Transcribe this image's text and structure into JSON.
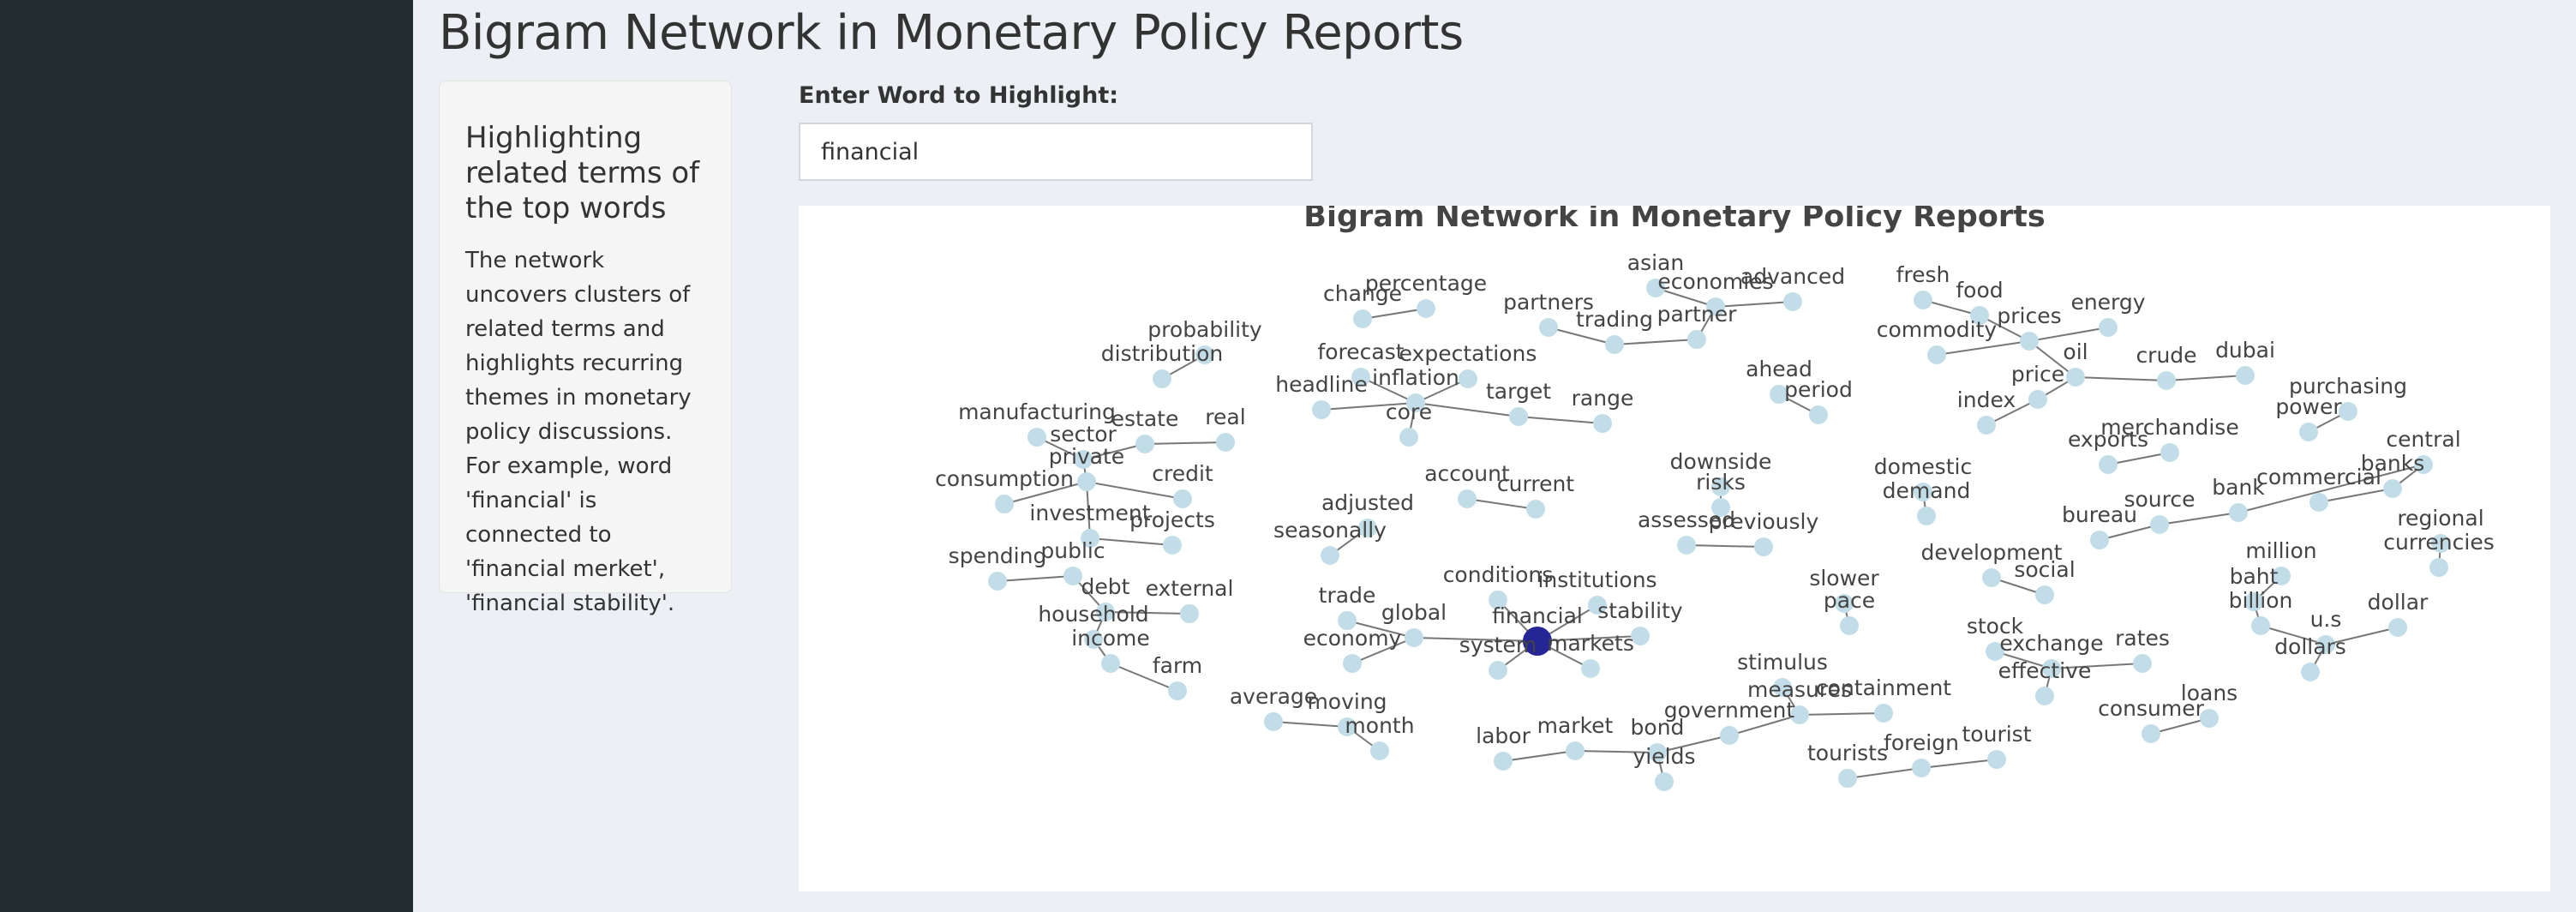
{
  "header": {
    "title": "Bigram Network in Monetary Policy Reports"
  },
  "info": {
    "title": "Highlighting related terms of the top words",
    "description": "The network uncovers clusters of related terms and highlights recurring themes in monetary policy discussions. For example, word 'financial' is connected to 'financial merket', 'financial stability'."
  },
  "search": {
    "label": "Enter Word to Highlight:",
    "value": "financial"
  },
  "colors": {
    "node": "#c2dde8",
    "highlight": "#232694",
    "edge": "#777777"
  },
  "chart_data": {
    "type": "network",
    "title": "Bigram Network in Monetary Policy Reports",
    "highlight": "financial",
    "nodes": [
      {
        "id": "probability"
      },
      {
        "id": "distribution"
      },
      {
        "id": "change"
      },
      {
        "id": "percentage"
      },
      {
        "id": "asian"
      },
      {
        "id": "economies"
      },
      {
        "id": "advanced"
      },
      {
        "id": "partners"
      },
      {
        "id": "trading"
      },
      {
        "id": "partner"
      },
      {
        "id": "fresh"
      },
      {
        "id": "food"
      },
      {
        "id": "prices"
      },
      {
        "id": "energy"
      },
      {
        "id": "commodity"
      },
      {
        "id": "oil"
      },
      {
        "id": "crude"
      },
      {
        "id": "dubai"
      },
      {
        "id": "price"
      },
      {
        "id": "index"
      },
      {
        "id": "forecast"
      },
      {
        "id": "expectations"
      },
      {
        "id": "inflation"
      },
      {
        "id": "headline"
      },
      {
        "id": "core"
      },
      {
        "id": "target"
      },
      {
        "id": "range"
      },
      {
        "id": "ahead"
      },
      {
        "id": "period"
      },
      {
        "id": "purchasing"
      },
      {
        "id": "power"
      },
      {
        "id": "manufacturing"
      },
      {
        "id": "sector"
      },
      {
        "id": "estate"
      },
      {
        "id": "real"
      },
      {
        "id": "private"
      },
      {
        "id": "consumption"
      },
      {
        "id": "credit"
      },
      {
        "id": "investment"
      },
      {
        "id": "projects"
      },
      {
        "id": "exports"
      },
      {
        "id": "merchandise"
      },
      {
        "id": "central"
      },
      {
        "id": "banks"
      },
      {
        "id": "bank"
      },
      {
        "id": "commercial"
      },
      {
        "id": "source"
      },
      {
        "id": "bureau"
      },
      {
        "id": "downside"
      },
      {
        "id": "risks"
      },
      {
        "id": "domestic"
      },
      {
        "id": "demand"
      },
      {
        "id": "account"
      },
      {
        "id": "current"
      },
      {
        "id": "adjusted"
      },
      {
        "id": "seasonally"
      },
      {
        "id": "assessed"
      },
      {
        "id": "previously"
      },
      {
        "id": "regional"
      },
      {
        "id": "currencies"
      },
      {
        "id": "spending"
      },
      {
        "id": "public"
      },
      {
        "id": "debt"
      },
      {
        "id": "external"
      },
      {
        "id": "household"
      },
      {
        "id": "income"
      },
      {
        "id": "farm"
      },
      {
        "id": "development"
      },
      {
        "id": "social"
      },
      {
        "id": "million"
      },
      {
        "id": "baht"
      },
      {
        "id": "billion"
      },
      {
        "id": "u.s"
      },
      {
        "id": "dollar"
      },
      {
        "id": "dollars"
      },
      {
        "id": "slower"
      },
      {
        "id": "pace"
      },
      {
        "id": "conditions"
      },
      {
        "id": "institutions"
      },
      {
        "id": "financial"
      },
      {
        "id": "stability"
      },
      {
        "id": "trade"
      },
      {
        "id": "global"
      },
      {
        "id": "economy"
      },
      {
        "id": "system"
      },
      {
        "id": "markets"
      },
      {
        "id": "stock"
      },
      {
        "id": "exchange"
      },
      {
        "id": "rates"
      },
      {
        "id": "effective"
      },
      {
        "id": "average"
      },
      {
        "id": "moving"
      },
      {
        "id": "month"
      },
      {
        "id": "stimulus"
      },
      {
        "id": "measures"
      },
      {
        "id": "containment"
      },
      {
        "id": "government"
      },
      {
        "id": "bond"
      },
      {
        "id": "yields"
      },
      {
        "id": "market"
      },
      {
        "id": "labor"
      },
      {
        "id": "consumer"
      },
      {
        "id": "loans"
      },
      {
        "id": "tourists"
      },
      {
        "id": "foreign"
      },
      {
        "id": "tourist"
      }
    ],
    "edges": [
      [
        "probability",
        "distribution"
      ],
      [
        "change",
        "percentage"
      ],
      [
        "asian",
        "economies"
      ],
      [
        "economies",
        "advanced"
      ],
      [
        "economies",
        "partner"
      ],
      [
        "trading",
        "partner"
      ],
      [
        "partners",
        "trading"
      ],
      [
        "fresh",
        "food"
      ],
      [
        "food",
        "prices"
      ],
      [
        "energy",
        "prices"
      ],
      [
        "commodity",
        "prices"
      ],
      [
        "oil",
        "prices"
      ],
      [
        "oil",
        "crude"
      ],
      [
        "crude",
        "dubai"
      ],
      [
        "oil",
        "price"
      ],
      [
        "price",
        "index"
      ],
      [
        "forecast",
        "inflation"
      ],
      [
        "expectations",
        "inflation"
      ],
      [
        "headline",
        "inflation"
      ],
      [
        "core",
        "inflation"
      ],
      [
        "inflation",
        "target"
      ],
      [
        "target",
        "range"
      ],
      [
        "ahead",
        "period"
      ],
      [
        "purchasing",
        "power"
      ],
      [
        "manufacturing",
        "sector"
      ],
      [
        "private",
        "sector"
      ],
      [
        "real",
        "estate"
      ],
      [
        "estate",
        "sector"
      ],
      [
        "private",
        "consumption"
      ],
      [
        "private",
        "credit"
      ],
      [
        "private",
        "investment"
      ],
      [
        "investment",
        "projects"
      ],
      [
        "exports",
        "merchandise"
      ],
      [
        "central",
        "banks"
      ],
      [
        "commercial",
        "banks"
      ],
      [
        "central",
        "bank"
      ],
      [
        "source",
        "bank"
      ],
      [
        "bureau",
        "source"
      ],
      [
        "downside",
        "risks"
      ],
      [
        "domestic",
        "demand"
      ],
      [
        "account",
        "current"
      ],
      [
        "seasonally",
        "adjusted"
      ],
      [
        "assessed",
        "previously"
      ],
      [
        "regional",
        "currencies"
      ],
      [
        "public",
        "spending"
      ],
      [
        "public",
        "debt"
      ],
      [
        "external",
        "debt"
      ],
      [
        "household",
        "debt"
      ],
      [
        "household",
        "income"
      ],
      [
        "farm",
        "income"
      ],
      [
        "development",
        "social"
      ],
      [
        "million",
        "baht"
      ],
      [
        "billion",
        "baht"
      ],
      [
        "billion",
        "u.s"
      ],
      [
        "u.s",
        "dollar"
      ],
      [
        "u.s",
        "dollars"
      ],
      [
        "slower",
        "pace"
      ],
      [
        "financial",
        "conditions"
      ],
      [
        "financial",
        "institutions"
      ],
      [
        "financial",
        "stability"
      ],
      [
        "financial",
        "system"
      ],
      [
        "financial",
        "markets"
      ],
      [
        "global",
        "financial"
      ],
      [
        "trade",
        "global"
      ],
      [
        "global",
        "economy"
      ],
      [
        "stock",
        "exchange"
      ],
      [
        "exchange",
        "rates"
      ],
      [
        "effective",
        "exchange"
      ],
      [
        "average",
        "moving"
      ],
      [
        "moving",
        "month"
      ],
      [
        "stimulus",
        "measures"
      ],
      [
        "containment",
        "measures"
      ],
      [
        "government",
        "measures"
      ],
      [
        "government",
        "bond"
      ],
      [
        "bond",
        "yields"
      ],
      [
        "bond",
        "market"
      ],
      [
        "labor",
        "market"
      ],
      [
        "consumer",
        "loans"
      ],
      [
        "tourists",
        "foreign"
      ],
      [
        "foreign",
        "tourist"
      ]
    ]
  }
}
